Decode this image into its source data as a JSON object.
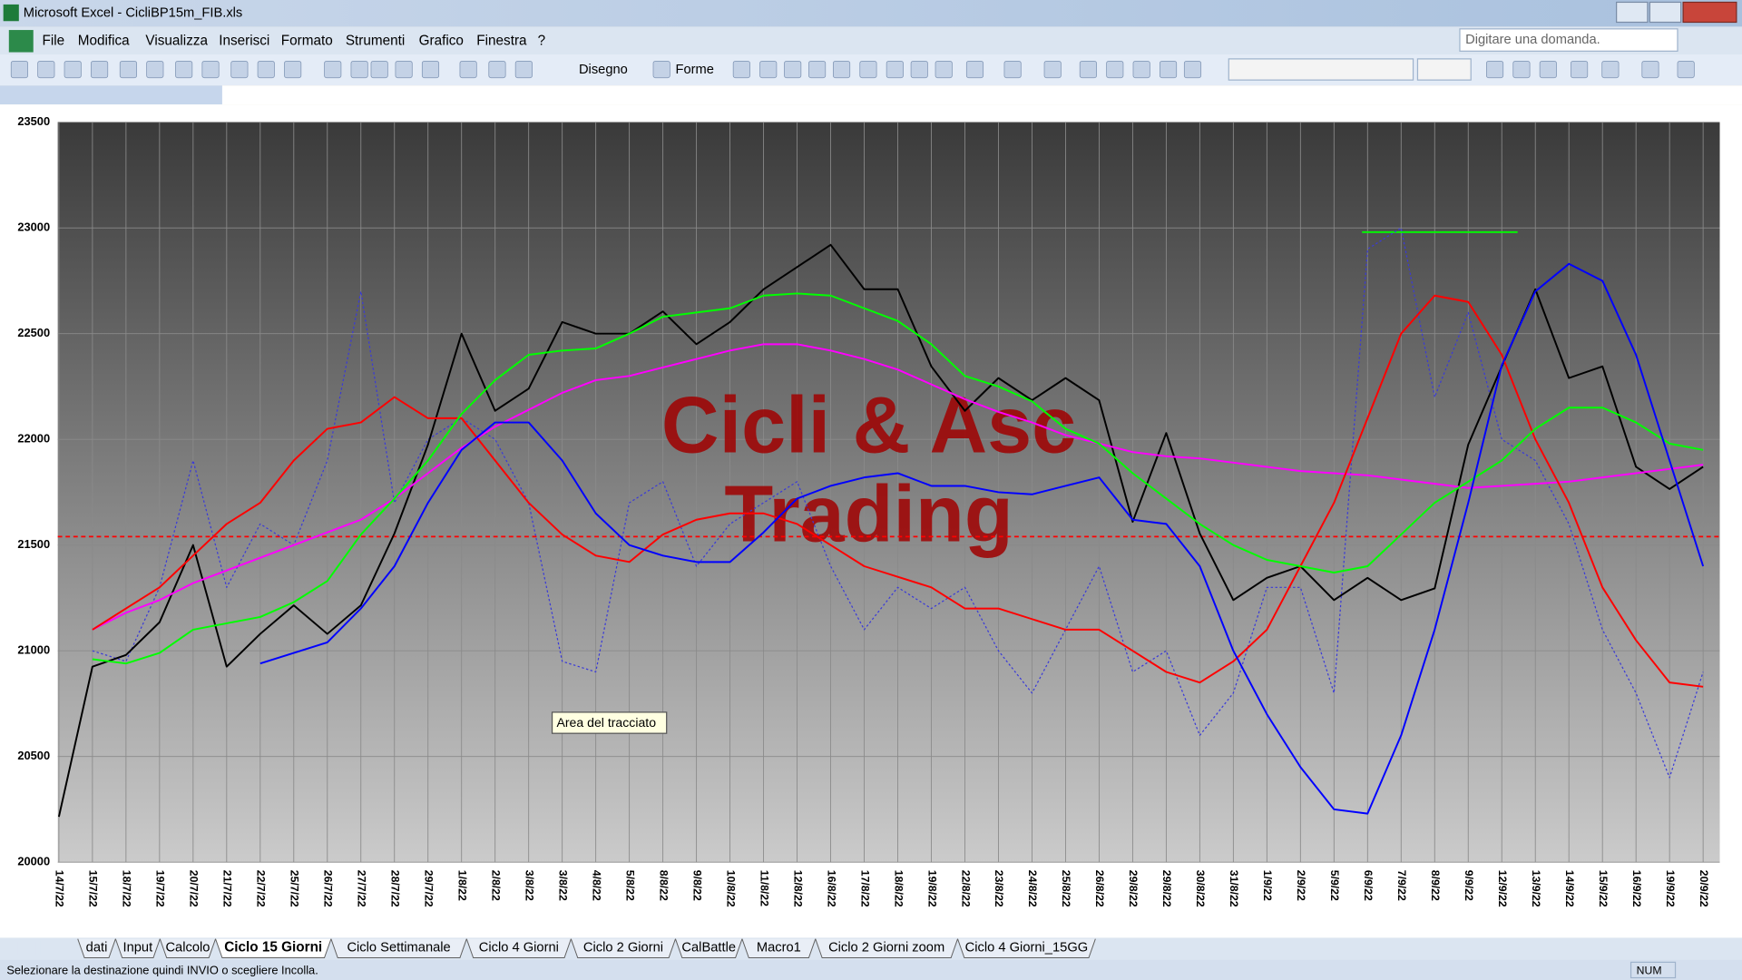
{
  "window": {
    "title": "Microsoft Excel - CicliBP15m_FIB.xls",
    "help_box": "Digitare una domanda."
  },
  "menu": [
    "File",
    "Modifica",
    "Visualizza",
    "Inserisci",
    "Formato",
    "Strumenti",
    "Grafico",
    "Finestra",
    "?"
  ],
  "toolbar": {
    "drawing": "Disegno",
    "shapes": "Forme"
  },
  "tooltip": "Area del tracciato",
  "sheets": [
    "dati",
    "Input",
    "Calcolo",
    "Ciclo 15 Giorni",
    "Ciclo Settimanale",
    "Ciclo 4 Giorni",
    "Ciclo 2 Giorni",
    "CalBattle",
    "Macro1",
    "Ciclo 2 Giorni zoom",
    "Ciclo 4 Giorni_15GG"
  ],
  "active_sheet": 3,
  "status": {
    "message": "Selezionare la destinazione quindi INVIO o scegliere Incolla.",
    "num": "NUM"
  },
  "chart_data": {
    "type": "line",
    "watermark": [
      "Cicli & Asc",
      "Trading"
    ],
    "categories": [
      "14/7/22",
      "15/7/22",
      "18/7/22",
      "19/7/22",
      "20/7/22",
      "21/7/22",
      "22/7/22",
      "25/7/22",
      "26/7/22",
      "27/7/22",
      "28/7/22",
      "29/7/22",
      "1/8/22",
      "2/8/22",
      "3/8/22",
      "3/8/22",
      "4/8/22",
      "5/8/22",
      "8/8/22",
      "9/8/22",
      "10/8/22",
      "11/8/22",
      "12/8/22",
      "16/8/22",
      "17/8/22",
      "18/8/22",
      "19/8/22",
      "22/8/22",
      "23/8/22",
      "24/8/22",
      "25/8/22",
      "26/8/22",
      "29/8/22",
      "29/8/22",
      "30/8/22",
      "31/8/22",
      "1/9/22",
      "2/9/22",
      "5/9/22",
      "6/9/22",
      "7/9/22",
      "8/9/22",
      "9/9/22",
      "12/9/22",
      "13/9/22",
      "14/9/22",
      "15/9/22",
      "16/9/22",
      "19/9/22",
      "20/9/22"
    ],
    "ylim": [
      20000,
      23500
    ],
    "yticks": [
      20000,
      20500,
      21000,
      21500,
      22000,
      22500,
      23000,
      23500
    ],
    "grid": true,
    "series": [
      {
        "color": "#3a3ad8",
        "dashed": true,
        "values": [
          null,
          21000,
          20950,
          21300,
          21900,
          21300,
          21600,
          21500,
          21900,
          22700,
          21700,
          22000,
          22100,
          22000,
          21700,
          20950,
          20900,
          21700,
          21800,
          21400,
          21600,
          21700,
          21800,
          21400,
          21100,
          21300,
          21200,
          21300,
          21000,
          20800,
          21100,
          21400,
          20900,
          21000,
          20600,
          20800,
          21300,
          21300,
          20800,
          22900,
          23000,
          22200,
          22600,
          22000,
          21900,
          21600,
          21100,
          20800,
          20400,
          20900
        ]
      },
      {
        "color": "#000000",
        "values": [
          20215,
          20925,
          20980,
          21135,
          21500,
          20925,
          21080,
          21215,
          21080,
          21215,
          21555,
          21975,
          22500,
          22135,
          22240,
          22555,
          22500,
          22500,
          22605,
          22450,
          22555,
          22710,
          22815,
          22920,
          22710,
          22710,
          22345,
          22135,
          22290,
          22185,
          22290,
          22185,
          21610,
          22030,
          21555,
          21240,
          21345,
          21400,
          21240,
          21345,
          21240,
          21295,
          21975,
          22345,
          22710,
          22290,
          22345,
          21870,
          21765,
          21870
        ]
      },
      {
        "color": "#ff00ff",
        "values": [
          null,
          21100,
          21180,
          21240,
          21320,
          21380,
          21440,
          21500,
          21560,
          21620,
          21720,
          21840,
          21960,
          22060,
          22140,
          22220,
          22280,
          22300,
          22340,
          22380,
          22420,
          22450,
          22450,
          22420,
          22380,
          22330,
          22260,
          22190,
          22130,
          22080,
          22020,
          21980,
          21940,
          21920,
          21910,
          21890,
          21870,
          21850,
          21840,
          21830,
          21810,
          21790,
          21770,
          21780,
          21790,
          21800,
          21820,
          21840,
          21860,
          21880
        ]
      },
      {
        "color": "#ff0000",
        "values": [
          null,
          21100,
          21200,
          21300,
          21450,
          21600,
          21700,
          21900,
          22050,
          22080,
          22200,
          22100,
          22100,
          21900,
          21700,
          21550,
          21450,
          21420,
          21550,
          21620,
          21650,
          21650,
          21600,
          21500,
          21400,
          21350,
          21300,
          21200,
          21200,
          21150,
          21100,
          21100,
          21000,
          20900,
          20850,
          20950,
          21100,
          21400,
          21700,
          22100,
          22500,
          22680,
          22650,
          22400,
          22000,
          21700,
          21300,
          21050,
          20850,
          20830
        ]
      },
      {
        "color": "#00ff00",
        "values": [
          null,
          20960,
          20940,
          20990,
          21100,
          21130,
          21160,
          21230,
          21330,
          21550,
          21720,
          21900,
          22120,
          22280,
          22400,
          22420,
          22430,
          22500,
          22580,
          22600,
          22620,
          22680,
          22690,
          22680,
          22620,
          22560,
          22450,
          22300,
          22250,
          22180,
          22050,
          21980,
          21840,
          21720,
          21600,
          21500,
          21430,
          21400,
          21370,
          21400,
          21550,
          21700,
          21800,
          21900,
          22050,
          22150,
          22150,
          22080,
          21980,
          21950
        ]
      },
      {
        "color": "#0000ff",
        "values": [
          null,
          null,
          null,
          null,
          null,
          null,
          20940,
          20990,
          21040,
          21200,
          21400,
          21700,
          21950,
          22080,
          22080,
          21900,
          21650,
          21500,
          21450,
          21420,
          21420,
          21560,
          21720,
          21780,
          21820,
          21840,
          21780,
          21780,
          21750,
          21740,
          21780,
          21820,
          21620,
          21600,
          21400,
          21000,
          20700,
          20450,
          20250,
          20230,
          20600,
          21100,
          21700,
          22350,
          22700,
          22830,
          22750,
          22400,
          21900,
          21400
        ]
      }
    ],
    "reference_lines": [
      {
        "value": 21540,
        "color": "#ff0000",
        "dashed": true
      },
      {
        "value": 22980,
        "color": "#00ff00",
        "dashed": false
      }
    ]
  }
}
